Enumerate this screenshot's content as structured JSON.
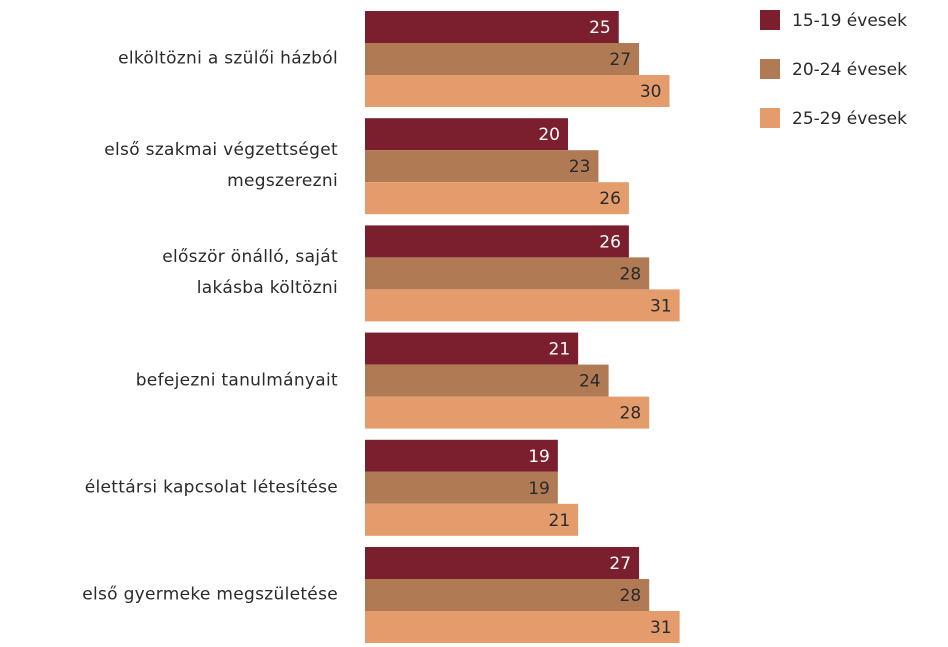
{
  "chart_data": {
    "type": "bar",
    "orientation": "horizontal",
    "categories": [
      "elköltözni a szülői házból",
      "első szakmai végzettséget\nmegszerezni",
      "először önálló, saját\nlakásba költözni",
      "befejezni tanulmányait",
      "élettársi kapcsolat létesítése",
      "első gyermeke megszületése"
    ],
    "series": [
      {
        "name": "15-19 évesek",
        "color": "#7b1f2e",
        "label_color": "#ffffff",
        "values": [
          25,
          20,
          26,
          21,
          19,
          27
        ]
      },
      {
        "name": "20-24 évesek",
        "color": "#b07a55",
        "label_color": "#2a2a2a",
        "values": [
          27,
          23,
          28,
          24,
          19,
          28
        ]
      },
      {
        "name": "25-29 évesek",
        "color": "#e59c6c",
        "label_color": "#2a2a2a",
        "values": [
          30,
          26,
          31,
          28,
          21,
          31
        ]
      }
    ],
    "legend": "top-right"
  }
}
